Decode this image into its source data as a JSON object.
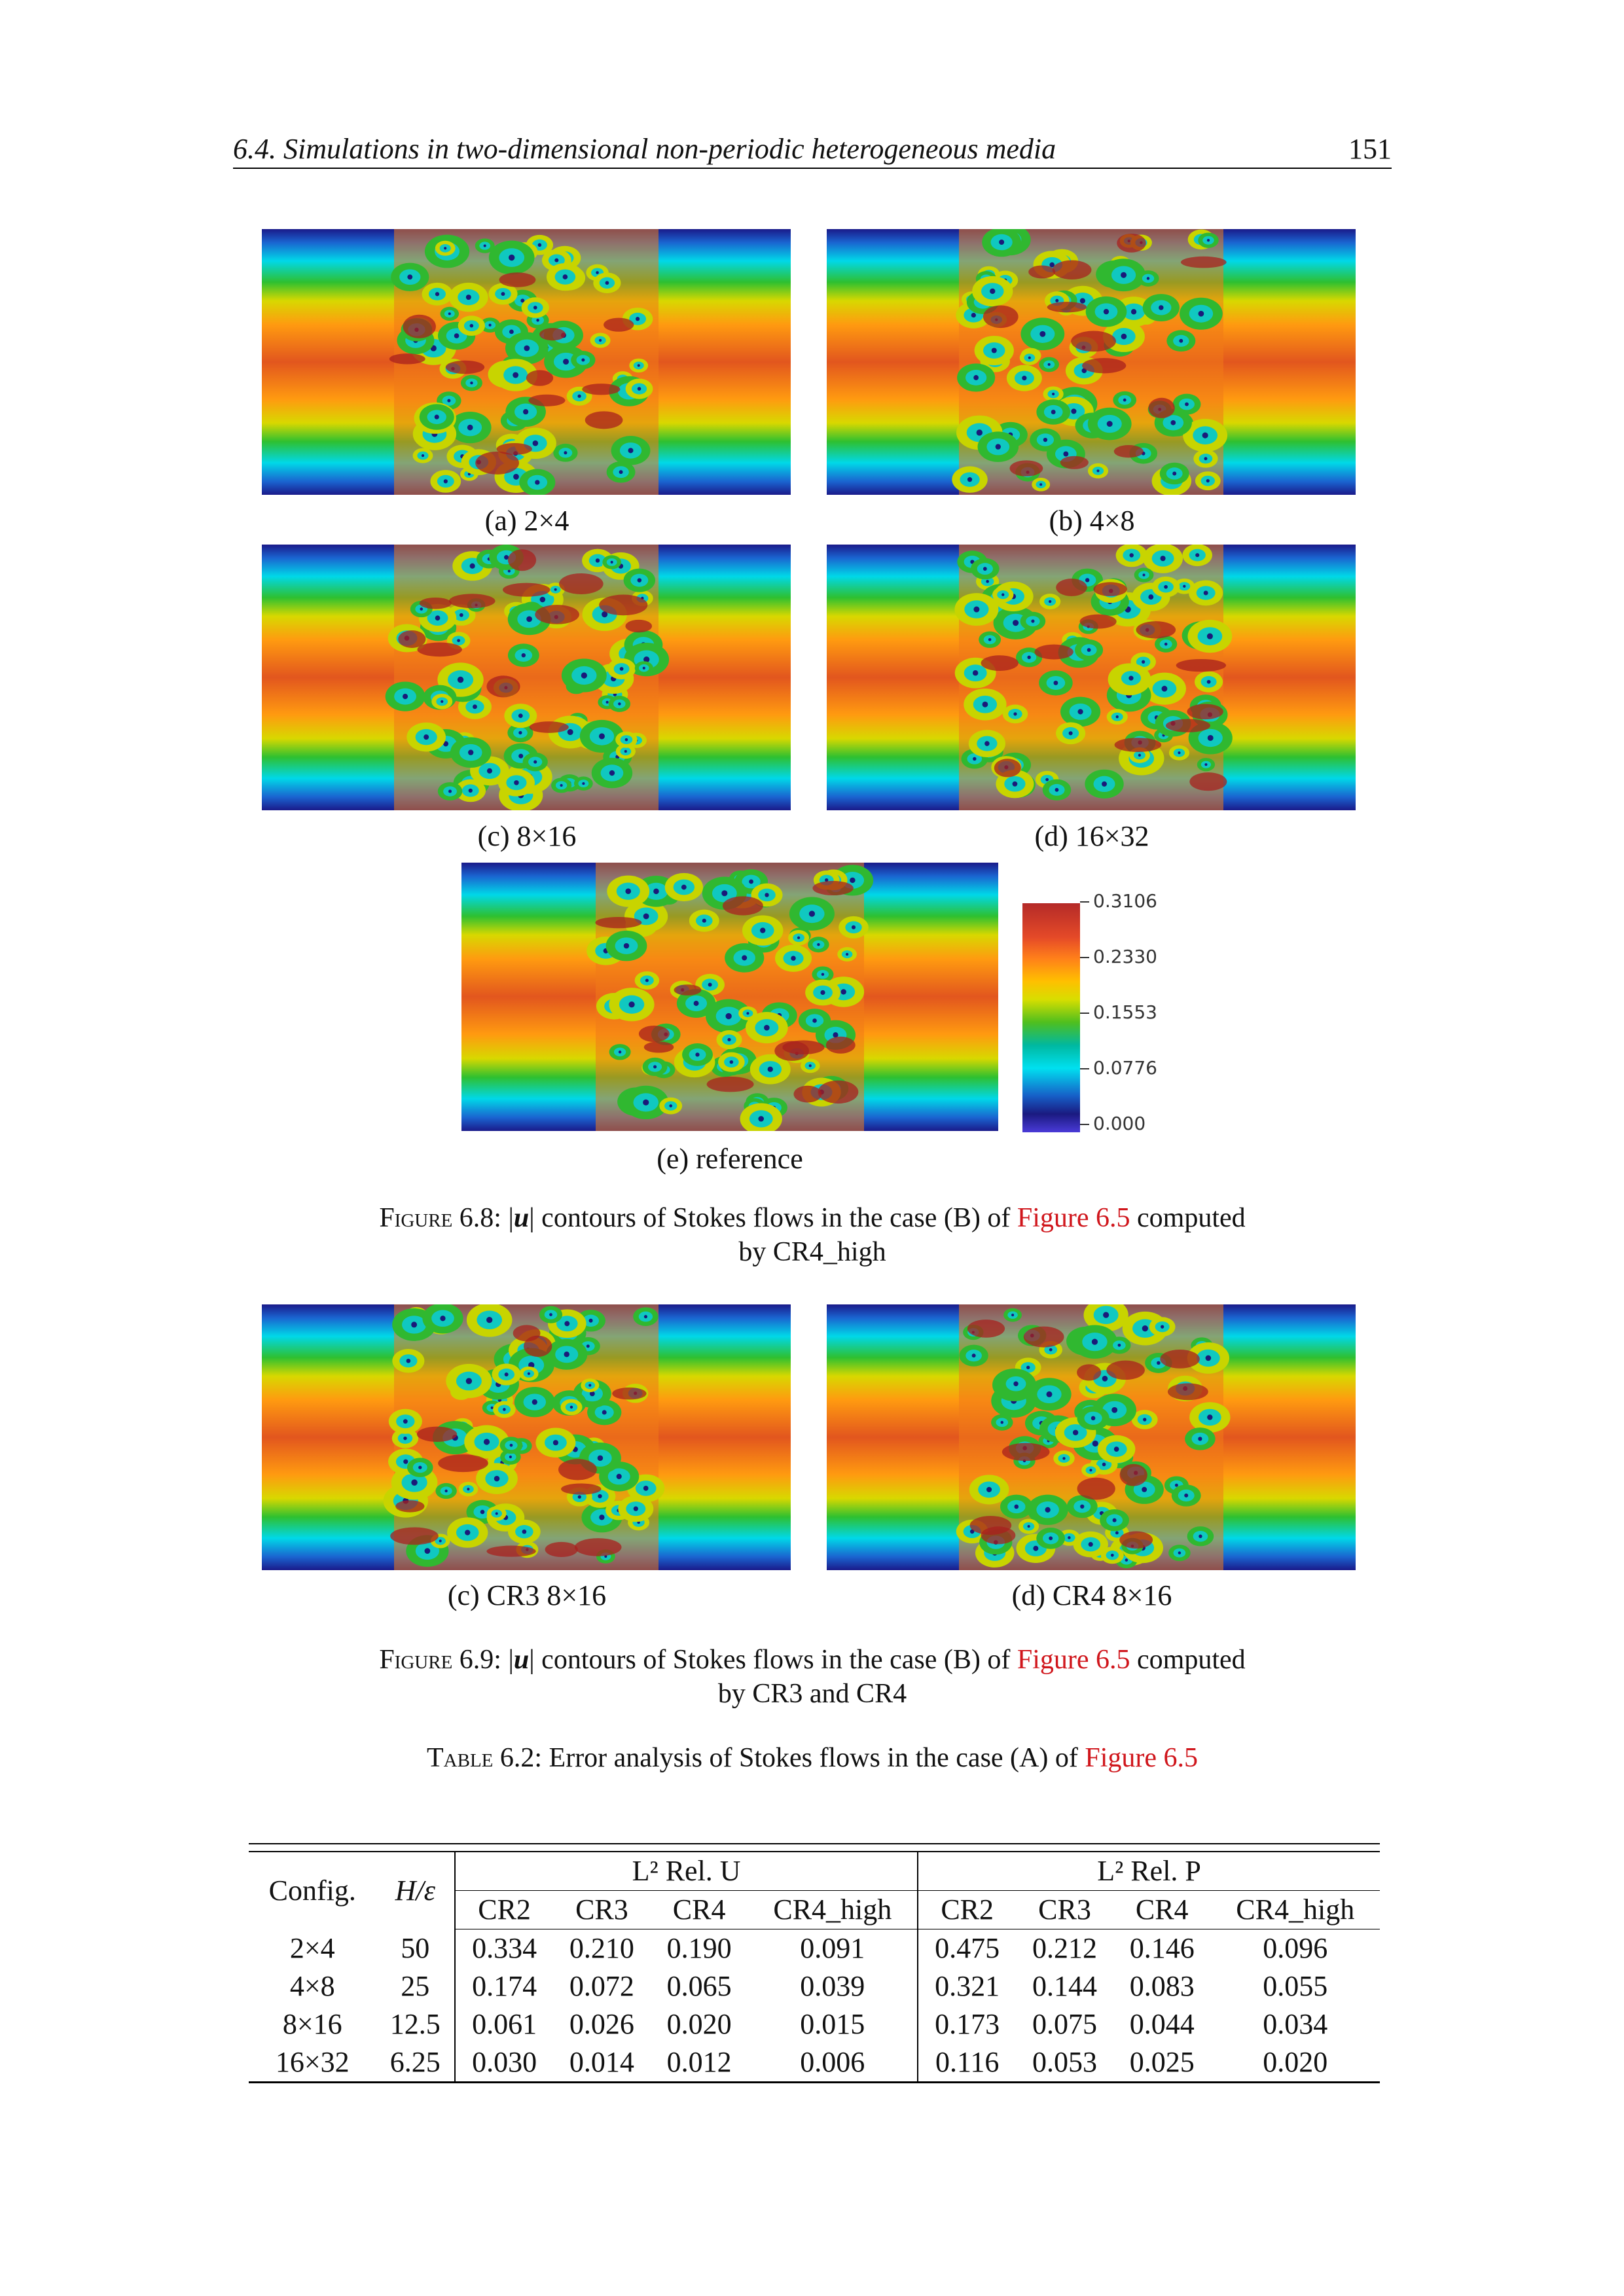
{
  "header": {
    "section": "6.4.  Simulations in two-dimensional non-periodic heterogeneous media",
    "page_number": "151"
  },
  "figure_6_8": {
    "panels": [
      {
        "label": "(a) 2×4"
      },
      {
        "label": "(b) 4×8"
      },
      {
        "label": "(c) 8×16"
      },
      {
        "label": "(d) 16×32"
      },
      {
        "label": "(e) reference"
      }
    ],
    "colorbar": {
      "ticks": [
        "0.3106",
        "0.2330",
        "0.1553",
        "0.0776",
        "0.000"
      ]
    },
    "caption": {
      "prefix": "Figure 6.8:",
      "var": "u",
      "text1": " contours of Stokes flows in the case (B) of ",
      "ref": "Figure 6.5",
      "text2": " computed",
      "line2": "by CR4_high"
    }
  },
  "figure_6_9": {
    "panels": [
      {
        "label": "(c) CR3 8×16"
      },
      {
        "label": "(d) CR4 8×16"
      }
    ],
    "caption": {
      "prefix": "Figure 6.9:",
      "var": "u",
      "text1": " contours of Stokes flows in the case (B) of ",
      "ref": "Figure 6.5",
      "text2": " computed",
      "line2": "by CR3 and CR4"
    }
  },
  "table_6_2": {
    "caption_prefix": "Table 6.2:",
    "caption_text": " Error analysis of Stokes flows in the case (A) of ",
    "caption_ref": "Figure 6.5",
    "col_config": "Config.",
    "col_ratio": "H/ε",
    "group_u": "L² Rel. U",
    "group_p": "L² Rel. P",
    "sub_headers": [
      "CR2",
      "CR3",
      "CR4",
      "CR4_high",
      "CR2",
      "CR3",
      "CR4",
      "CR4_high"
    ],
    "rows": [
      [
        "2×4",
        "50",
        "0.334",
        "0.210",
        "0.190",
        "0.091",
        "0.475",
        "0.212",
        "0.146",
        "0.096"
      ],
      [
        "4×8",
        "25",
        "0.174",
        "0.072",
        "0.065",
        "0.039",
        "0.321",
        "0.144",
        "0.083",
        "0.055"
      ],
      [
        "8×16",
        "12.5",
        "0.061",
        "0.026",
        "0.020",
        "0.015",
        "0.173",
        "0.075",
        "0.044",
        "0.034"
      ],
      [
        "16×32",
        "6.25",
        "0.030",
        "0.014",
        "0.012",
        "0.006",
        "0.116",
        "0.053",
        "0.025",
        "0.020"
      ]
    ]
  }
}
